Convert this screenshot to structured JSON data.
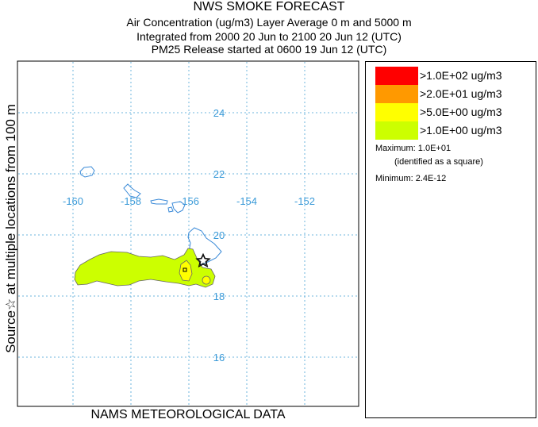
{
  "title": "NWS SMOKE FORECAST",
  "subtitle_lines": [
    "Air Concentration (ug/m3) Layer Average    0 m and  5000 m",
    "Integrated from 2000 20 Jun to 2100 20 Jun 12 (UTC)",
    "PM25 Release started at 0600 19 Jun 12 (UTC)"
  ],
  "side_label": "Source☆ at multiple locations    from   100 m",
  "footer": "NAMS METEOROLOGICAL DATA",
  "map": {
    "lon_labels": [
      "-160",
      "-158",
      "-156",
      "-154",
      "-152"
    ],
    "lat_labels": [
      "24",
      "22",
      "20",
      "18",
      "16"
    ],
    "lon_values": [
      -160,
      -158,
      -156,
      -154,
      -152
    ],
    "lat_values": [
      24,
      22,
      20,
      18,
      16
    ],
    "grid_color": "#6cb4de",
    "label_color": "#3a9ad8",
    "coast_color": "#3a8ad8"
  },
  "legend": {
    "items": [
      {
        "label": ">1.0E+02 ug/m3",
        "color": "#ff0000"
      },
      {
        "label": ">2.0E+01 ug/m3",
        "color": "#ff9900"
      },
      {
        "label": ">5.0E+00 ug/m3",
        "color": "#ffff00"
      },
      {
        "label": ">1.0E+00 ug/m3",
        "color": "#ccff00"
      }
    ],
    "maximum": "Maximum: 1.0E+01",
    "maximum_note": "(identified as a square)",
    "minimum": "Minimum: 2.4E-12"
  }
}
